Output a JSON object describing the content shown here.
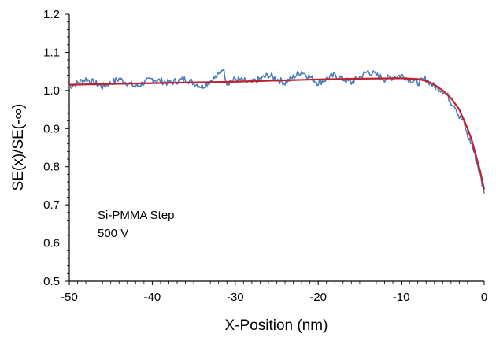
{
  "chart_data": {
    "type": "line",
    "xlabel": "X-Position (nm)",
    "ylabel": "SE(x)/SE(-∞)",
    "xlim": [
      -50,
      0
    ],
    "ylim": [
      0.5,
      1.2
    ],
    "x_ticks": [
      -50,
      -40,
      -30,
      -20,
      -10,
      0
    ],
    "x_tick_labels": [
      "-50",
      "-40",
      "-30",
      "-20",
      "-10",
      "0"
    ],
    "y_ticks": [
      0.5,
      0.6,
      0.7,
      0.8,
      0.9,
      1.0,
      1.1,
      1.2
    ],
    "y_tick_labels": [
      "0.5",
      "0.6",
      "0.7",
      "0.8",
      "0.9",
      "1.0",
      "1.1",
      "1.2"
    ],
    "grid": false,
    "annotations": [
      "Si-PMMA Step",
      "500 V"
    ],
    "series": [
      {
        "role": "measured",
        "color": "#4a7ebb",
        "x": [
          -50,
          -48,
          -46,
          -44,
          -42,
          -40,
          -38,
          -36,
          -34,
          -32,
          -31.5,
          -31,
          -30,
          -28,
          -26,
          -24,
          -22,
          -20,
          -18,
          -16,
          -14,
          -12,
          -10,
          -9,
          -8,
          -7,
          -6,
          -5,
          -4.5,
          -4,
          -3.5,
          -3,
          -2.5,
          -2,
          -1.5,
          -1,
          -0.5,
          0
        ],
        "y": [
          1.01,
          1.03,
          1.01,
          1.03,
          1.01,
          1.03,
          1.02,
          1.03,
          1.01,
          1.04,
          1.06,
          1.02,
          1.03,
          1.02,
          1.04,
          1.02,
          1.05,
          1.02,
          1.04,
          1.02,
          1.05,
          1.03,
          1.04,
          1.03,
          1.02,
          1.03,
          1.01,
          1.0,
          0.99,
          0.97,
          0.96,
          0.93,
          0.92,
          0.88,
          0.86,
          0.82,
          0.78,
          0.73
        ]
      },
      {
        "role": "fit",
        "color": "#c0202e",
        "x": [
          -50,
          -45,
          -40,
          -35,
          -30,
          -25,
          -20,
          -15,
          -10,
          -8,
          -7,
          -6,
          -5,
          -4,
          -3,
          -2,
          -1.5,
          -1,
          -0.5,
          0
        ],
        "y": [
          1.015,
          1.017,
          1.019,
          1.021,
          1.023,
          1.026,
          1.029,
          1.031,
          1.032,
          1.03,
          1.025,
          1.015,
          1.0,
          0.98,
          0.95,
          0.9,
          0.87,
          0.83,
          0.79,
          0.74
        ]
      }
    ]
  }
}
